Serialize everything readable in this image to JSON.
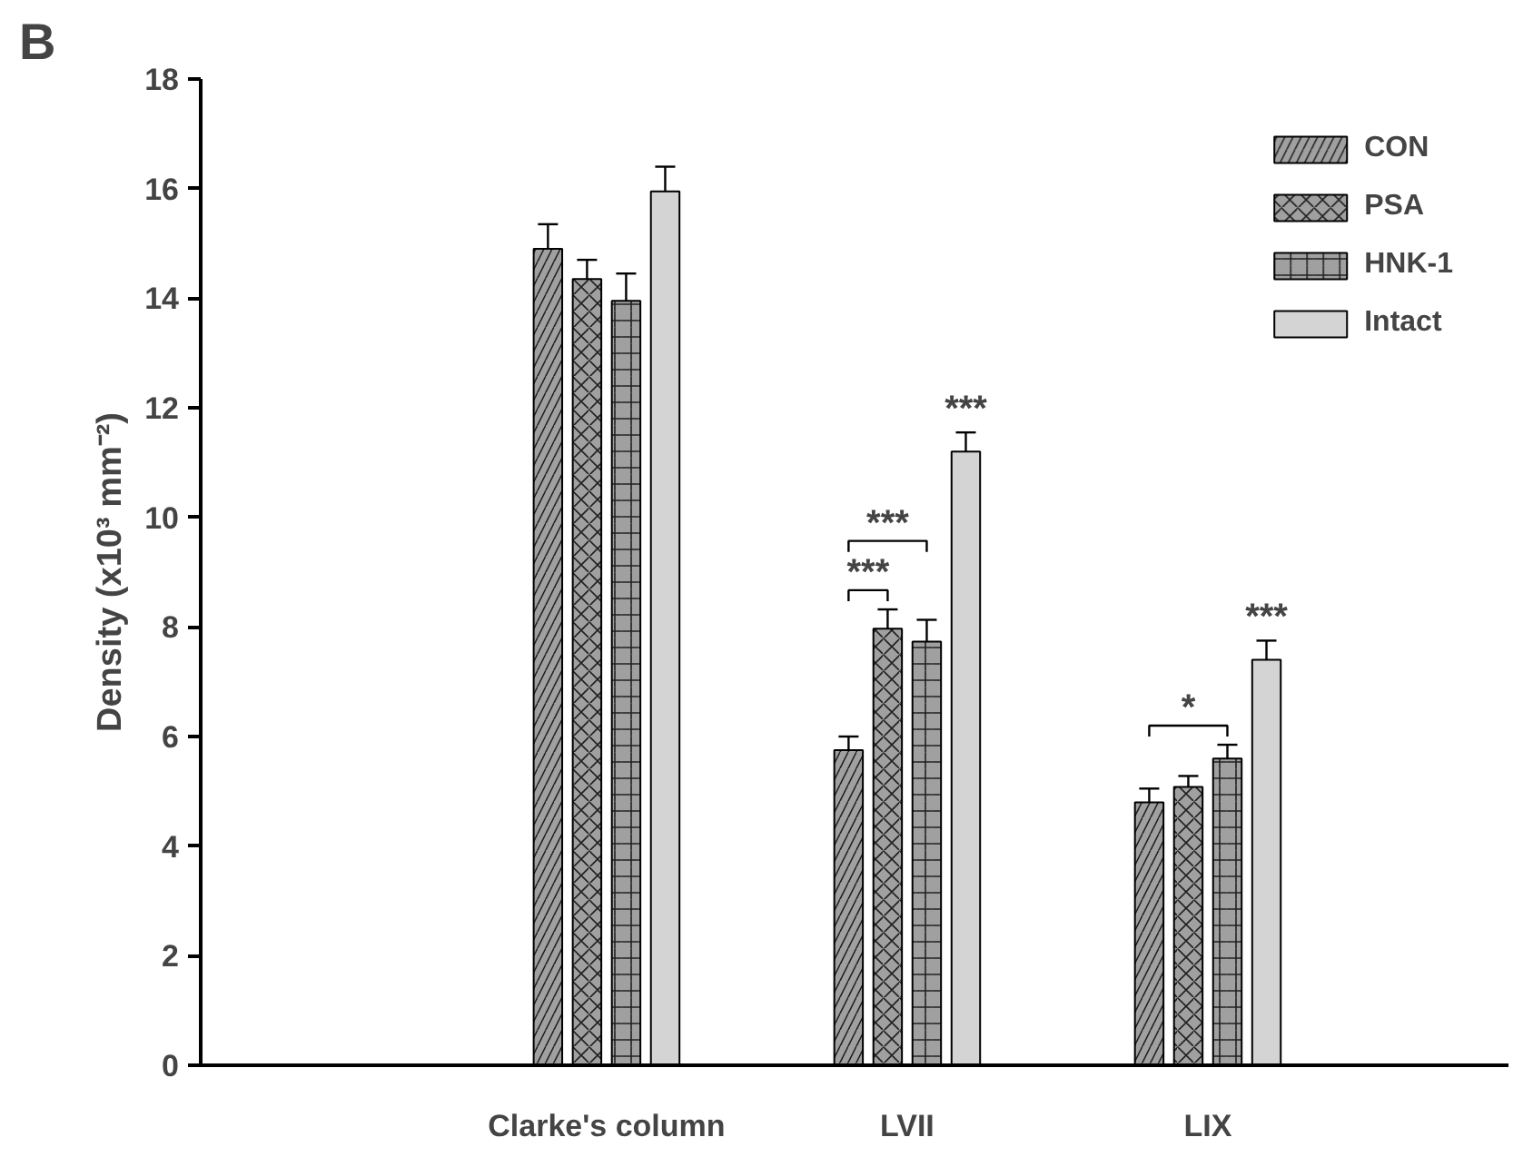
{
  "chart_data": {
    "type": "bar",
    "categories": [
      "Clarke's column",
      "LVII",
      "LIX"
    ],
    "ylabel": "Density (x10³ mm⁻²)",
    "ylim": [
      0,
      18
    ],
    "yticks": [
      0,
      2,
      4,
      6,
      8,
      10,
      12,
      14,
      16,
      18
    ],
    "series": [
      {
        "name": "CON",
        "color": "#a0a0a0",
        "values": [
          14.9,
          5.75,
          4.8
        ],
        "errors": [
          0.45,
          0.25,
          0.25
        ]
      },
      {
        "name": "PSA",
        "color": "#a0a0a0",
        "values": [
          14.35,
          7.97,
          5.08
        ],
        "errors": [
          0.35,
          0.35,
          0.2
        ]
      },
      {
        "name": "HNK-1",
        "color": "#a0a0a0",
        "values": [
          13.95,
          7.73,
          5.6
        ],
        "errors": [
          0.5,
          0.4,
          0.25
        ]
      },
      {
        "name": "Intact",
        "color": "#d4d4d4",
        "values": [
          15.95,
          11.2,
          7.4
        ],
        "errors": [
          0.45,
          0.35,
          0.35
        ]
      }
    ],
    "annotations": [
      "B",
      "***",
      "***",
      "***",
      "***",
      "*"
    ],
    "legend": "top right",
    "grid": false
  }
}
